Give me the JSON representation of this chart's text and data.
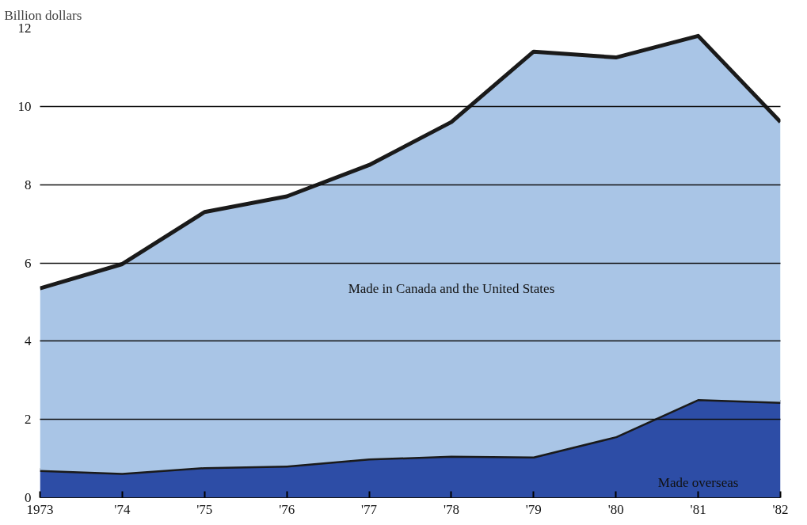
{
  "chart_data": {
    "type": "area",
    "stacked": true,
    "ylabel": "Billion dollars",
    "x": [
      1973,
      1974,
      1975,
      1976,
      1977,
      1978,
      1979,
      1980,
      1981,
      1982
    ],
    "series": [
      {
        "name": "Made overseas",
        "color": "#2d4da6",
        "values": [
          0.71,
          0.63,
          0.78,
          0.82,
          1.0,
          1.07,
          1.05,
          1.57,
          2.52,
          2.45
        ]
      },
      {
        "name": "Made in Canada and the United States",
        "color": "#a9c5e6",
        "values": [
          4.64,
          5.34,
          6.52,
          6.88,
          7.5,
          8.53,
          10.35,
          9.68,
          9.28,
          7.15
        ]
      }
    ],
    "xlim": [
      1973,
      1982
    ],
    "xticks": [
      1973,
      {
        "value": 1974,
        "label": "'74"
      },
      {
        "value": 1975,
        "label": "'75"
      },
      {
        "value": 1976,
        "label": "'76"
      },
      {
        "value": 1977,
        "label": "'77"
      },
      {
        "value": 1978,
        "label": "'78"
      },
      {
        "value": 1979,
        "label": "'79"
      },
      {
        "value": 1980,
        "label": "'80"
      },
      {
        "value": 1981,
        "label": "'81"
      },
      {
        "value": 1982,
        "label": "'82"
      }
    ],
    "ylim": [
      0,
      12
    ],
    "yticks": [
      0,
      2,
      4,
      6,
      8,
      10,
      12
    ],
    "grid": "y"
  }
}
